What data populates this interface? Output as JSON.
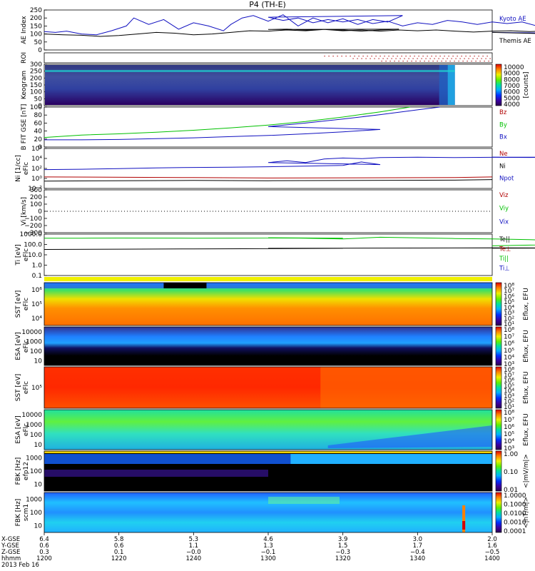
{
  "title": "P4 (TH-E)",
  "chart_data": [
    {
      "id": "ae",
      "type": "line",
      "ylabel": "AE Index",
      "ylim": [
        0,
        250
      ],
      "yticks": [
        "250",
        "200",
        "150",
        "100",
        "50",
        "0"
      ],
      "series": [
        {
          "name": "Kyoto AE",
          "color": "#1010c0",
          "x": [
            1200,
            1203,
            1206,
            1210,
            1214,
            1218,
            1222,
            1224,
            1228,
            1232,
            1236,
            1240,
            1244,
            1248,
            1250,
            1253,
            1256,
            1260,
            1264,
            1268,
            1272,
            1276,
            1280,
            1284,
            1288,
            1292,
            1296,
            1300,
            1304,
            1308,
            1312,
            1316,
            1320,
            1324,
            1328,
            1332,
            1336,
            1340,
            1344,
            1348,
            1352,
            1356,
            1360,
            1364,
            1368,
            1372,
            1376,
            1380,
            1384,
            1388,
            1392,
            1396,
            1400
          ],
          "y": [
            115,
            110,
            118,
            100,
            95,
            120,
            150,
            200,
            160,
            190,
            130,
            170,
            150,
            120,
            160,
            200,
            215,
            180,
            220,
            150,
            200,
            170,
            195,
            160,
            190,
            175,
            215,
            205,
            185,
            200,
            170,
            190,
            175,
            190,
            165,
            180,
            150,
            170,
            160,
            185,
            175,
            160,
            175,
            165,
            175,
            150,
            170,
            160,
            140,
            110,
            90,
            100,
            110
          ]
        },
        {
          "name": "Themis AE",
          "color": "#000000",
          "x": [
            1200,
            1205,
            1210,
            1215,
            1220,
            1225,
            1230,
            1235,
            1240,
            1245,
            1250,
            1255,
            1260,
            1265,
            1270,
            1275,
            1280,
            1285,
            1290,
            1295,
            1300,
            1305,
            1310,
            1315,
            1320,
            1325,
            1330,
            1335,
            1340,
            1345,
            1350,
            1355,
            1360,
            1365,
            1370,
            1375,
            1380,
            1385,
            1390,
            1395,
            1400
          ],
          "y": [
            100,
            95,
            92,
            85,
            90,
            100,
            110,
            105,
            95,
            100,
            110,
            120,
            118,
            125,
            120,
            128,
            125,
            118,
            125,
            130,
            128,
            130,
            125,
            128,
            120,
            125,
            118,
            125,
            120,
            125,
            118,
            112,
            118,
            120,
            115,
            118,
            110,
            100,
            80,
            90,
            110
          ]
        }
      ]
    },
    {
      "id": "roi",
      "type": "scatter",
      "ylabel": "ROI",
      "dot_start": 1315
    },
    {
      "id": "keogram",
      "type": "heatmap",
      "ylabel": "Keogram",
      "ylim": [
        0,
        300
      ],
      "yticks": [
        "300",
        "250",
        "200",
        "150",
        "100",
        "50",
        "0"
      ],
      "data_end": 1350,
      "zlabel": "[counts]",
      "zlim": [
        4000,
        10000
      ],
      "zticks": [
        "10000",
        "9000",
        "8000",
        "7000",
        "6000",
        "5000",
        "4000"
      ]
    },
    {
      "id": "bfield",
      "type": "line",
      "ylabel": "B FIT GSE [nT]",
      "ylim": [
        0,
        100
      ],
      "yticks": [
        "100",
        "80",
        "60",
        "40",
        "20",
        "0"
      ],
      "series": [
        {
          "name": "Bz",
          "color": "#b00000",
          "x": [],
          "y": []
        },
        {
          "name": "By",
          "color": "#00c000",
          "x": [
            1200,
            1210,
            1220,
            1230,
            1240,
            1250,
            1260,
            1270,
            1280,
            1290,
            1298
          ],
          "y": [
            24,
            30,
            33,
            37,
            42,
            48,
            55,
            64,
            75,
            88,
            100
          ]
        },
        {
          "name": "Bx",
          "color": "#1010c0",
          "x": [
            1200,
            1210,
            1220,
            1230,
            1240,
            1250,
            1260,
            1270,
            1280,
            1290,
            1300,
            1310,
            1320,
            1330,
            1340,
            1346
          ],
          "y": [
            18,
            18,
            19,
            21,
            23,
            26,
            29,
            33,
            38,
            44,
            51,
            60,
            70,
            81,
            93,
            100
          ]
        }
      ]
    },
    {
      "id": "density",
      "type": "line",
      "ylabel": "Ni [1/cc]",
      "ylabel2": "eFlc",
      "ylim": [
        0.01,
        1000000
      ],
      "yticks": [
        "10⁶",
        "10⁴",
        "10²",
        "10⁰",
        "10⁻²"
      ],
      "series": [
        {
          "name": "Ne",
          "color": "#b00000",
          "x": [
            1200,
            1240,
            1300,
            1350,
            1400
          ],
          "y": [
            2,
            1.5,
            1.2,
            1.5,
            2
          ]
        },
        {
          "name": "Ni",
          "color": "#000000",
          "x": [
            1200,
            1240,
            1300,
            1350,
            1400
          ],
          "y": [
            0.3,
            0.4,
            0.35,
            0.45,
            0.6
          ]
        },
        {
          "name": "Npot",
          "color": "#1010c0",
          "x": [
            1200,
            1210,
            1220,
            1230,
            1240,
            1250,
            1260,
            1270,
            1280,
            1285,
            1290,
            1300,
            1305,
            1310,
            1315,
            1320,
            1325,
            1330,
            1340,
            1350,
            1360,
            1370,
            1380,
            1390,
            1400
          ],
          "y": [
            60,
            70,
            90,
            130,
            160,
            180,
            220,
            300,
            400,
            2000,
            600,
            1500,
            3500,
            1500,
            8000,
            12000,
            9000,
            15000,
            18000,
            15000,
            17000,
            16000,
            18000,
            17000,
            18000
          ]
        }
      ]
    },
    {
      "id": "velocity",
      "type": "line",
      "ylabel": "Vi [km/s]",
      "ylim": [
        -300,
        300
      ],
      "yticks": [
        "300",
        "200",
        "100",
        "0",
        "−100",
        "−200",
        "−300"
      ],
      "series": [
        {
          "name": "Viz",
          "color": "#b00000",
          "x": [],
          "y": []
        },
        {
          "name": "Viy",
          "color": "#00c000",
          "x": [],
          "y": []
        },
        {
          "name": "Vix",
          "color": "#1010c0",
          "x": [],
          "y": []
        }
      ]
    },
    {
      "id": "temp",
      "type": "line",
      "ylabel": "Ti [eV]",
      "ylabel2": "eFlc",
      "ylim": [
        0.01,
        10000
      ],
      "yticks": [
        "1000.0",
        "100.0",
        "10.0",
        "1.0",
        "0.1"
      ],
      "series": [
        {
          "name": "Te||",
          "color": "#000000",
          "x": [
            1200,
            1220,
            1240,
            1260,
            1280,
            1300,
            1320,
            1340,
            1360,
            1380,
            1400
          ],
          "y": [
            60,
            65,
            72,
            78,
            85,
            88,
            92,
            95,
            100,
            95,
            90
          ]
        },
        {
          "name": "Te⊥",
          "color": "#b00000",
          "x": [],
          "y": []
        },
        {
          "name": "Ti||",
          "color": "#00c000",
          "x": [
            1200,
            1210,
            1220,
            1240,
            1260,
            1280,
            1300,
            1310,
            1320,
            1330,
            1340,
            1350,
            1360,
            1370,
            1380,
            1390,
            1400
          ],
          "y": [
            2500,
            2600,
            2700,
            2600,
            2700,
            2600,
            3000,
            2500,
            2000,
            3500,
            2800,
            2300,
            2000,
            1600,
            1000,
            400,
            200
          ]
        },
        {
          "name": "Ti⊥",
          "color": "#1010c0",
          "x": [],
          "y": []
        }
      ]
    },
    {
      "id": "sst_e",
      "type": "heatmap",
      "ylabel": "SST [eV]",
      "ylabel2": "eFlc",
      "yticks": [
        "10⁶",
        "10⁵",
        "10⁴"
      ],
      "zlabel": "Eflux, EFU",
      "zticks": [
        "10⁸",
        "10⁷",
        "10⁶",
        "10⁵",
        "10⁴",
        "10³",
        "10²",
        "10¹"
      ]
    },
    {
      "id": "esa_e",
      "type": "heatmap",
      "ylabel": "ESA [eV]",
      "ylabel2": "eFlc",
      "yticks": [
        "10000",
        "1000",
        "100",
        "10"
      ],
      "zlabel": "Eflux, EFU",
      "zticks": [
        "10⁸",
        "10⁷",
        "10⁶",
        "10⁵",
        "10⁴",
        "10³"
      ]
    },
    {
      "id": "sst_i",
      "type": "heatmap",
      "ylabel": "SST [eV]",
      "ylabel2": "eFlc",
      "yticks": [
        "10⁵"
      ],
      "zlabel": "Eflux, EFU",
      "zticks": [
        "10⁸",
        "10⁷",
        "10⁶",
        "10⁵",
        "10⁴",
        "10³",
        "10²",
        "10¹"
      ]
    },
    {
      "id": "esa_i",
      "type": "heatmap",
      "ylabel": "ESA [eV]",
      "ylabel2": "eFlc",
      "yticks": [
        "10000",
        "1000",
        "100",
        "10"
      ],
      "zlabel": "Eflux, EFU",
      "zticks": [
        "10⁸",
        "10⁷",
        "10⁶",
        "10⁵",
        "10⁴",
        "10³"
      ]
    },
    {
      "id": "fbk_e",
      "type": "heatmap",
      "ylabel": "FBK [Hz]",
      "ylabel2": "efp12",
      "yticks": [
        "1000",
        "100",
        "10"
      ],
      "zlabel": "<|mV/m|>",
      "zticks": [
        "1.00",
        "0.10",
        "0.01"
      ]
    },
    {
      "id": "fbk_b",
      "type": "heatmap",
      "ylabel": "FBK [Hz]",
      "ylabel2": "scm1",
      "yticks": [
        "1000",
        "100",
        "10"
      ],
      "zlabel": "<|nT/m|>",
      "zticks": [
        "1.0000",
        "0.1000",
        "0.0100",
        "0.0010",
        "0.0001"
      ]
    }
  ],
  "xaxis": {
    "rows": [
      {
        "label": "X-GSE",
        "values": [
          "6.4",
          "5.8",
          "5.3",
          "4.6",
          "3.9",
          "3.0",
          "2.0"
        ]
      },
      {
        "label": "Y-GSE",
        "values": [
          "0.6",
          "0.6",
          "1.1",
          "1.3",
          "1.5",
          "1.7",
          "1.6"
        ]
      },
      {
        "label": "Z-GSE",
        "values": [
          "0.3",
          "0.1",
          "−0.0",
          "−0.1",
          "−0.3",
          "−0.4",
          "−0.5"
        ]
      },
      {
        "label": "hhmm",
        "values": [
          "1200",
          "1220",
          "1240",
          "1300",
          "1320",
          "1340",
          "1400"
        ]
      }
    ],
    "date": "2013 Feb 16",
    "range": [
      1200,
      1400
    ]
  }
}
